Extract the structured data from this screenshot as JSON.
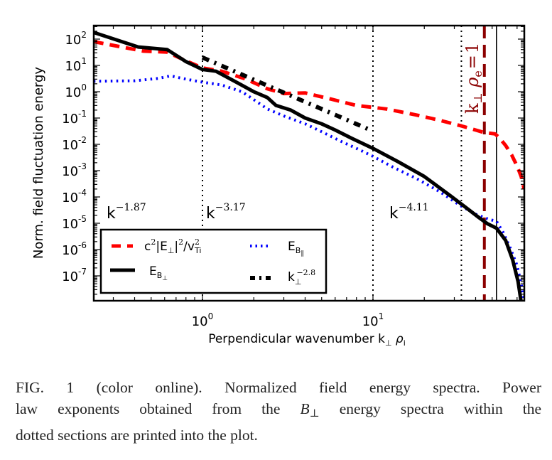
{
  "chart_data": {
    "type": "line",
    "scale": {
      "x": "log",
      "y": "log"
    },
    "xlabel": "Perpendicular wavenumber k⊥ ρi",
    "xlabel_parts": {
      "main": "Perpendicular wavenumber k",
      "sub1": "⊥",
      "rho": "ρ",
      "sub2": "i"
    },
    "ylabel": "Norm. field fluctuation energy",
    "xlim": [
      0.23,
      77
    ],
    "ylim": [
      1.1e-08,
      320
    ],
    "x_ticks": [
      {
        "value": 1,
        "base": "10",
        "exp": "0"
      },
      {
        "value": 10,
        "base": "10",
        "exp": "1"
      }
    ],
    "y_ticks": [
      {
        "value": 100,
        "base": "10",
        "exp": "2"
      },
      {
        "value": 10,
        "base": "10",
        "exp": "1"
      },
      {
        "value": 1,
        "base": "10",
        "exp": "0"
      },
      {
        "value": 0.1,
        "base": "10",
        "exp": "-1"
      },
      {
        "value": 0.01,
        "base": "10",
        "exp": "-2"
      },
      {
        "value": 0.001,
        "base": "10",
        "exp": "-3"
      },
      {
        "value": 0.0001,
        "base": "10",
        "exp": "-4"
      },
      {
        "value": 1e-05,
        "base": "10",
        "exp": "-5"
      },
      {
        "value": 1e-06,
        "base": "10",
        "exp": "-6"
      },
      {
        "value": 1e-07,
        "base": "10",
        "exp": "-7"
      }
    ],
    "series": [
      {
        "name": "c²|E⊥|²/v²Ti",
        "color": "#ff0000",
        "style": "dashed",
        "x": [
          0.23,
          0.45,
          0.62,
          0.8,
          1.0,
          1.3,
          1.8,
          2.4,
          3.0,
          4.0,
          5.5,
          8,
          12,
          18,
          25,
          33,
          40,
          45,
          52,
          55,
          60,
          65,
          70,
          74,
          77
        ],
        "y": [
          80,
          35,
          32,
          15,
          8,
          6,
          3,
          1.3,
          0.85,
          0.9,
          0.55,
          0.3,
          0.22,
          0.13,
          0.08,
          0.05,
          0.035,
          0.028,
          0.025,
          0.018,
          0.009,
          0.004,
          0.0015,
          0.0006,
          0.0002
        ]
      },
      {
        "name": "EB⊥",
        "color": "#000000",
        "style": "solid",
        "x": [
          0.23,
          0.42,
          0.62,
          0.8,
          1.0,
          1.2,
          1.6,
          2.0,
          2.4,
          2.7,
          3.3,
          4.0,
          5.0,
          6.0,
          7.5,
          10,
          14,
          20,
          28,
          35,
          42,
          47,
          53,
          60,
          66,
          71,
          74,
          77
        ],
        "y": [
          180,
          50,
          40,
          14,
          7,
          6,
          2.2,
          1.0,
          0.6,
          0.3,
          0.2,
          0.1,
          0.06,
          0.035,
          0.017,
          0.007,
          0.0022,
          0.0006,
          0.00012,
          4e-05,
          1.6e-05,
          9.5e-06,
          6.5e-06,
          2.2e-06,
          4e-07,
          6e-08,
          1e-08,
          2e-09
        ]
      },
      {
        "name": "EB∥",
        "color": "#0000ff",
        "style": "dotted",
        "x": [
          0.23,
          0.4,
          0.55,
          0.65,
          0.8,
          1.0,
          1.3,
          1.7,
          2.0,
          2.4,
          3.0,
          4.0,
          5.0,
          6.5,
          8,
          10,
          13,
          18,
          25,
          32,
          40,
          48,
          53,
          58,
          64,
          70,
          74,
          77
        ],
        "y": [
          2.5,
          2.6,
          3.2,
          4.0,
          3.0,
          2.3,
          1.8,
          1.0,
          0.5,
          0.22,
          0.12,
          0.06,
          0.03,
          0.013,
          0.007,
          0.0035,
          0.0014,
          0.0005,
          0.00015,
          5e-05,
          2.2e-05,
          1.4e-05,
          1.2e-05,
          4.5e-06,
          1.1e-06,
          2.5e-07,
          5e-08,
          1.2e-08
        ]
      },
      {
        "name": "k⊥^-2.8",
        "color": "#000000",
        "style": "dashdot",
        "x": [
          1.0,
          9.5
        ],
        "y": [
          20,
          0.0366
        ]
      }
    ],
    "vertical_lines": [
      {
        "x": 1.0,
        "style": "dotted",
        "color": "#000000"
      },
      {
        "x": 10.0,
        "style": "dotted",
        "color": "#000000"
      },
      {
        "x": 33,
        "style": "dotted",
        "color": "#000000"
      },
      {
        "x": 45,
        "style": "dashed",
        "color": "#8b0000",
        "label": "k⊥ ρe = 1"
      },
      {
        "x": 53,
        "style": "solid",
        "color": "#000000"
      }
    ],
    "annotations": [
      {
        "text": "k",
        "exp": "−1.87",
        "x": 0.3,
        "y": 1.8e-05
      },
      {
        "text": "k",
        "exp": "−3.17",
        "x": 1.25,
        "y": 1.8e-05
      },
      {
        "text": "k",
        "exp": "−4.11",
        "x": 12.5,
        "y": 1.8e-05
      }
    ],
    "vline_label": {
      "k": "k",
      "sub": "⊥",
      "rho": "ρ",
      "rho_sub": "e",
      "eq": "=",
      "one": "1"
    },
    "legend": {
      "placement": "lower-left",
      "entries": [
        {
          "label_html": "c<tspan baseline-shift='super' font-size='11'>2</tspan>|E<tspan baseline-shift='sub' font-size='11'>⊥</tspan>|<tspan baseline-shift='super' font-size='11'>2</tspan>/v",
          "label_text": "c²|E⊥|²/v²Ti",
          "parts": [
            "c",
            "2",
            "|E",
            "⊥",
            "|",
            "2",
            "/v",
            "2",
            "Ti"
          ],
          "color": "#ff0000",
          "style": "dashed"
        },
        {
          "label_text": "EB∥",
          "parts": [
            "E",
            "B",
            "∥"
          ],
          "color": "#0000ff",
          "style": "dotted"
        },
        {
          "label_text": "EB⊥",
          "parts": [
            "E",
            "B",
            "⊥"
          ],
          "color": "#000000",
          "style": "solid"
        },
        {
          "label_text": "k⊥^-2.8",
          "parts": [
            "k",
            "⊥",
            "−2.8"
          ],
          "color": "#000000",
          "style": "dashdot"
        }
      ]
    }
  },
  "caption": {
    "line1": "FIG. 1 (color online).   Normalized field energy spectra. Power",
    "line2_a": "law exponents obtained from the ",
    "line2_b": "B",
    "line2_sub": "⊥",
    "line2_c": " energy spectra within the",
    "line3": "dotted sections are printed into the plot."
  }
}
